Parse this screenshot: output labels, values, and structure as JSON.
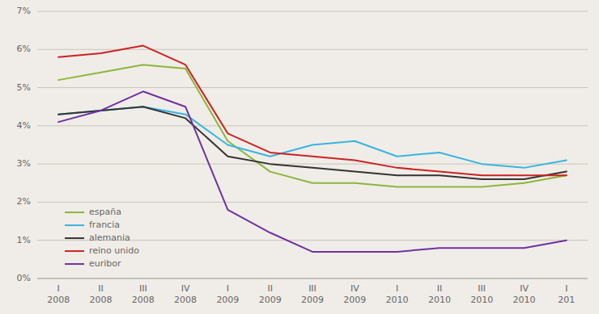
{
  "chart_data": {
    "type": "line",
    "categories": [
      "I\n2008",
      "II\n2008",
      "III\n2008",
      "IV\n2008",
      "I\n2009",
      "II\n2009",
      "III\n2009",
      "IV\n2009",
      "I\n2010",
      "II\n2010",
      "III\n2010",
      "IV\n2010",
      "I\n201"
    ],
    "series": [
      {
        "name": "españa",
        "color": "#8db53c",
        "values": [
          5.2,
          5.4,
          5.6,
          5.5,
          3.6,
          2.8,
          2.5,
          2.5,
          2.4,
          2.4,
          2.4,
          2.5,
          2.7
        ]
      },
      {
        "name": "francia",
        "color": "#38b4e0",
        "values": [
          4.3,
          4.4,
          4.5,
          4.3,
          3.5,
          3.2,
          3.5,
          3.6,
          3.2,
          3.3,
          3.0,
          2.9,
          3.1
        ]
      },
      {
        "name": "alemania",
        "color": "#333333",
        "values": [
          4.3,
          4.4,
          4.5,
          4.2,
          3.2,
          3.0,
          2.9,
          2.8,
          2.7,
          2.7,
          2.6,
          2.6,
          2.8
        ]
      },
      {
        "name": "reino unido",
        "color": "#cc2222",
        "values": [
          5.8,
          5.9,
          6.1,
          5.6,
          3.8,
          3.3,
          3.2,
          3.1,
          2.9,
          2.8,
          2.7,
          2.7,
          2.7
        ]
      },
      {
        "name": "euribor",
        "color": "#7030a0",
        "values": [
          4.1,
          4.4,
          4.9,
          4.5,
          1.8,
          1.2,
          0.7,
          0.7,
          0.7,
          0.8,
          0.8,
          0.8,
          1.0
        ]
      }
    ],
    "ylim": [
      0.0,
      7.0
    ],
    "yticks": [
      {
        "value": 0,
        "label": "0%"
      },
      {
        "value": 1,
        "label": "1%"
      },
      {
        "value": 2,
        "label": "2%"
      },
      {
        "value": 3,
        "label": "3%"
      },
      {
        "value": 4,
        "label": "4%"
      },
      {
        "value": 5,
        "label": "5%"
      },
      {
        "value": 6,
        "label": "6%"
      },
      {
        "value": 7,
        "label": "7%"
      }
    ],
    "grid": true,
    "legend": "lower left"
  }
}
